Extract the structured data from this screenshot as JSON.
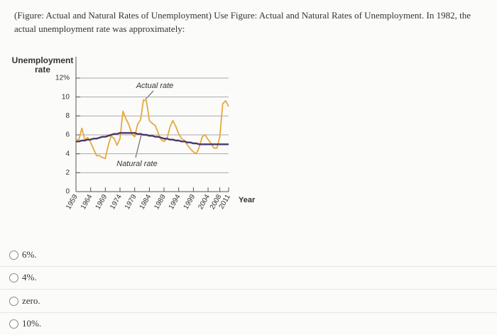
{
  "question": "(Figure: Actual and Natural Rates of Unemployment) Use Figure: Actual and Natural Rates of Unemployment. In 1982, the actual unemployment rate was approximately:",
  "chart_data": {
    "type": "line",
    "y_label": [
      "Unemployment",
      "rate"
    ],
    "x_label": "Year",
    "annotations": [
      "Actual rate",
      "Natural rate"
    ],
    "x": [
      1959,
      1960,
      1961,
      1962,
      1963,
      1964,
      1965,
      1966,
      1967,
      1968,
      1969,
      1970,
      1971,
      1972,
      1973,
      1974,
      1975,
      1976,
      1977,
      1978,
      1979,
      1980,
      1981,
      1982,
      1983,
      1984,
      1985,
      1986,
      1987,
      1988,
      1989,
      1990,
      1991,
      1992,
      1993,
      1994,
      1995,
      1996,
      1997,
      1998,
      1999,
      2000,
      2001,
      2002,
      2003,
      2004,
      2005,
      2006,
      2007,
      2008,
      2009,
      2010,
      2011
    ],
    "series": [
      {
        "color": "#e6a83c",
        "values": [
          5.5,
          5.5,
          6.7,
          5.5,
          5.7,
          5.2,
          4.5,
          3.8,
          3.8,
          3.6,
          3.5,
          4.9,
          5.9,
          5.6,
          4.9,
          5.6,
          8.5,
          7.7,
          7.1,
          6.1,
          5.8,
          7.1,
          7.6,
          9.7,
          9.6,
          7.5,
          7.2,
          7.0,
          6.2,
          5.5,
          5.3,
          5.6,
          6.8,
          7.5,
          6.9,
          6.1,
          5.6,
          5.4,
          4.9,
          4.5,
          4.2,
          4.0,
          4.7,
          5.8,
          6.0,
          5.5,
          5.1,
          4.6,
          4.6,
          5.8,
          9.3,
          9.6,
          9.0
        ]
      },
      {
        "color": "#4a3868",
        "values": [
          5.3,
          5.3,
          5.4,
          5.4,
          5.5,
          5.5,
          5.6,
          5.6,
          5.7,
          5.8,
          5.8,
          5.9,
          6.0,
          6.1,
          6.1,
          6.2,
          6.2,
          6.2,
          6.2,
          6.2,
          6.2,
          6.1,
          6.1,
          6.0,
          6.0,
          5.9,
          5.9,
          5.8,
          5.8,
          5.7,
          5.6,
          5.6,
          5.5,
          5.5,
          5.4,
          5.4,
          5.3,
          5.3,
          5.2,
          5.2,
          5.1,
          5.1,
          5.0,
          5.0,
          5.0,
          5.0,
          5.0,
          5.0,
          5.0,
          5.0,
          5.0,
          5.0,
          5.0
        ]
      }
    ],
    "xlim": [
      1959,
      2011
    ],
    "xticks": [
      1959,
      1964,
      1969,
      1974,
      1979,
      1984,
      1989,
      1994,
      1999,
      2004,
      2008,
      2011
    ],
    "ylim": [
      0,
      12
    ],
    "yticks": [
      0,
      2,
      4,
      6,
      8,
      10,
      {
        "value": 12,
        "label": "12%"
      }
    ],
    "grid": true
  },
  "options": [
    "6%.",
    "4%.",
    "zero.",
    "10%."
  ]
}
